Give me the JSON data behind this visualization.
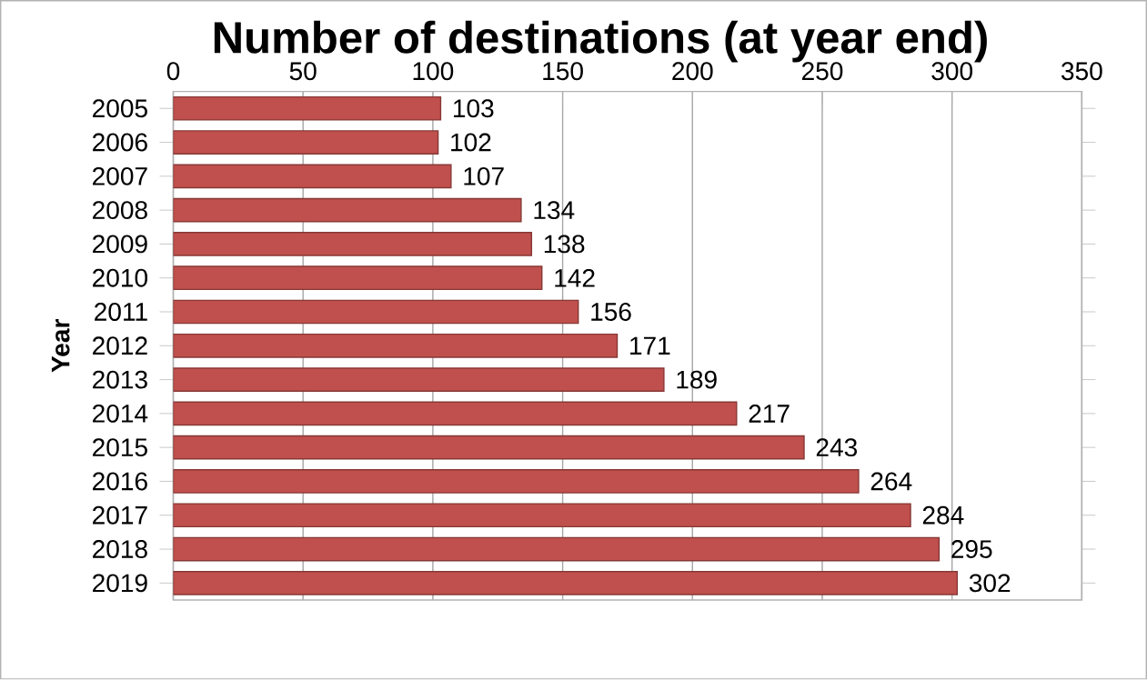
{
  "chart_data": {
    "type": "bar",
    "orientation": "horizontal",
    "title": "Number of destinations (at year end)",
    "ylabel": "Year",
    "categories": [
      "2005",
      "2006",
      "2007",
      "2008",
      "2009",
      "2010",
      "2011",
      "2012",
      "2013",
      "2014",
      "2015",
      "2016",
      "2017",
      "2018",
      "2019"
    ],
    "values": [
      103,
      102,
      107,
      134,
      138,
      142,
      156,
      171,
      189,
      217,
      243,
      264,
      284,
      295,
      302
    ],
    "color": "#c0504d",
    "xlim": [
      0,
      350
    ],
    "xticks": [
      0,
      50,
      100,
      150,
      200,
      250,
      300,
      350
    ],
    "grid": "x",
    "data_labels": true
  }
}
